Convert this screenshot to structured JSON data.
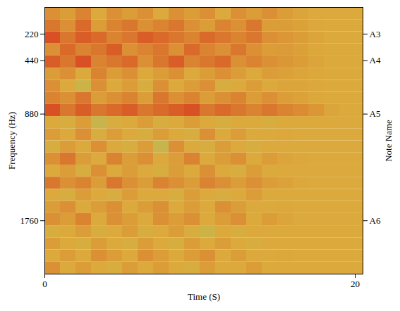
{
  "chart_data": {
    "type": "heatmap",
    "xlabel": "Time (S)",
    "ylabel": "Frequency (Hz)",
    "y2label": "Note Name",
    "xlim": [
      0,
      20.5
    ],
    "xticks": [
      0,
      20
    ],
    "ylim": [
      0,
      2200
    ],
    "yticks": [
      220,
      440,
      880,
      1760
    ],
    "y2lim": [
      0,
      2200
    ],
    "y2ticks": [
      {
        "value": 220,
        "label": "A3"
      },
      {
        "value": 440,
        "label": "A4"
      },
      {
        "value": 880,
        "label": "A5"
      },
      {
        "value": 1760,
        "label": "A6"
      }
    ],
    "cells": {
      "time_edges": [
        0,
        1,
        2,
        3,
        4,
        5,
        6,
        7,
        8,
        9,
        10,
        11,
        12,
        13,
        14,
        15,
        16,
        17,
        18,
        19,
        20,
        20.5
      ],
      "freq_edges": [
        0,
        100,
        200,
        300,
        400,
        500,
        600,
        700,
        800,
        900,
        1000,
        1100,
        1200,
        1300,
        1400,
        1500,
        1600,
        1700,
        1800,
        1900,
        2000,
        2100,
        2200
      ],
      "zlim": [
        0,
        1
      ],
      "z": [
        [
          0.6,
          0.55,
          0.65,
          0.5,
          0.6,
          0.55,
          0.6,
          0.5,
          0.6,
          0.55,
          0.6,
          0.5,
          0.6,
          0.55,
          0.6,
          0.55,
          0.52,
          0.5,
          0.5,
          0.5,
          0.5
        ],
        [
          0.7,
          0.6,
          0.75,
          0.55,
          0.65,
          0.7,
          0.6,
          0.65,
          0.7,
          0.6,
          0.55,
          0.65,
          0.6,
          0.7,
          0.55,
          0.55,
          0.53,
          0.51,
          0.5,
          0.5,
          0.5
        ],
        [
          0.85,
          0.7,
          0.8,
          0.75,
          0.65,
          0.7,
          0.8,
          0.75,
          0.7,
          0.65,
          0.75,
          0.7,
          0.65,
          0.7,
          0.6,
          0.58,
          0.55,
          0.52,
          0.5,
          0.5,
          0.5
        ],
        [
          0.6,
          0.75,
          0.65,
          0.7,
          0.8,
          0.6,
          0.65,
          0.7,
          0.6,
          0.75,
          0.65,
          0.6,
          0.7,
          0.6,
          0.55,
          0.56,
          0.54,
          0.51,
          0.5,
          0.5,
          0.5
        ],
        [
          0.8,
          0.7,
          0.85,
          0.65,
          0.7,
          0.75,
          0.6,
          0.7,
          0.8,
          0.65,
          0.7,
          0.75,
          0.6,
          0.65,
          0.6,
          0.58,
          0.55,
          0.52,
          0.5,
          0.5,
          0.5
        ],
        [
          0.55,
          0.6,
          0.5,
          0.65,
          0.55,
          0.6,
          0.5,
          0.55,
          0.6,
          0.5,
          0.55,
          0.6,
          0.55,
          0.5,
          0.55,
          0.54,
          0.52,
          0.51,
          0.5,
          0.5,
          0.5
        ],
        [
          0.6,
          0.5,
          0.35,
          0.6,
          0.5,
          0.55,
          0.45,
          0.6,
          0.5,
          0.55,
          0.6,
          0.45,
          0.5,
          0.55,
          0.5,
          0.52,
          0.52,
          0.51,
          0.5,
          0.5,
          0.5
        ],
        [
          0.65,
          0.6,
          0.7,
          0.55,
          0.6,
          0.65,
          0.55,
          0.7,
          0.6,
          0.65,
          0.55,
          0.6,
          0.65,
          0.55,
          0.6,
          0.55,
          0.53,
          0.51,
          0.5,
          0.5,
          0.5
        ],
        [
          0.85,
          0.7,
          0.8,
          0.7,
          0.75,
          0.8,
          0.7,
          0.75,
          0.8,
          0.85,
          0.7,
          0.75,
          0.7,
          0.65,
          0.7,
          0.65,
          0.62,
          0.58,
          0.52,
          0.5,
          0.5
        ],
        [
          0.5,
          0.45,
          0.55,
          0.3,
          0.45,
          0.5,
          0.55,
          0.45,
          0.5,
          0.55,
          0.5,
          0.45,
          0.5,
          0.5,
          0.45,
          0.5,
          0.5,
          0.5,
          0.5,
          0.5,
          0.5
        ],
        [
          0.55,
          0.5,
          0.6,
          0.45,
          0.55,
          0.5,
          0.45,
          0.55,
          0.5,
          0.45,
          0.6,
          0.5,
          0.55,
          0.5,
          0.5,
          0.51,
          0.5,
          0.5,
          0.5,
          0.5,
          0.5
        ],
        [
          0.45,
          0.55,
          0.5,
          0.6,
          0.5,
          0.45,
          0.55,
          0.3,
          0.6,
          0.5,
          0.45,
          0.55,
          0.5,
          0.45,
          0.5,
          0.5,
          0.5,
          0.5,
          0.5,
          0.5,
          0.5
        ],
        [
          0.6,
          0.7,
          0.55,
          0.5,
          0.65,
          0.55,
          0.6,
          0.5,
          0.55,
          0.65,
          0.5,
          0.55,
          0.6,
          0.5,
          0.55,
          0.52,
          0.51,
          0.5,
          0.5,
          0.5,
          0.5
        ],
        [
          0.5,
          0.55,
          0.45,
          0.6,
          0.5,
          0.55,
          0.5,
          0.45,
          0.55,
          0.5,
          0.6,
          0.5,
          0.45,
          0.55,
          0.5,
          0.5,
          0.5,
          0.5,
          0.5,
          0.5,
          0.5
        ],
        [
          0.7,
          0.6,
          0.65,
          0.55,
          0.7,
          0.6,
          0.55,
          0.65,
          0.6,
          0.55,
          0.65,
          0.6,
          0.55,
          0.6,
          0.55,
          0.53,
          0.51,
          0.5,
          0.5,
          0.5,
          0.5
        ],
        [
          0.5,
          0.45,
          0.55,
          0.5,
          0.45,
          0.55,
          0.5,
          0.5,
          0.45,
          0.55,
          0.5,
          0.45,
          0.5,
          0.55,
          0.5,
          0.5,
          0.5,
          0.5,
          0.5,
          0.5,
          0.5
        ],
        [
          0.55,
          0.6,
          0.5,
          0.55,
          0.6,
          0.5,
          0.55,
          0.6,
          0.5,
          0.55,
          0.5,
          0.6,
          0.55,
          0.5,
          0.5,
          0.51,
          0.5,
          0.5,
          0.5,
          0.5,
          0.5
        ],
        [
          0.6,
          0.55,
          0.65,
          0.5,
          0.6,
          0.55,
          0.5,
          0.6,
          0.55,
          0.6,
          0.5,
          0.55,
          0.6,
          0.5,
          0.55,
          0.52,
          0.5,
          0.5,
          0.5,
          0.5,
          0.5
        ],
        [
          0.45,
          0.5,
          0.55,
          0.45,
          0.5,
          0.55,
          0.45,
          0.5,
          0.55,
          0.45,
          0.35,
          0.5,
          0.45,
          0.5,
          0.5,
          0.5,
          0.5,
          0.5,
          0.5,
          0.5,
          0.5
        ],
        [
          0.55,
          0.5,
          0.45,
          0.55,
          0.5,
          0.45,
          0.55,
          0.5,
          0.45,
          0.55,
          0.5,
          0.55,
          0.5,
          0.45,
          0.5,
          0.5,
          0.5,
          0.5,
          0.5,
          0.5,
          0.5
        ],
        [
          0.5,
          0.55,
          0.5,
          0.6,
          0.55,
          0.5,
          0.6,
          0.55,
          0.5,
          0.55,
          0.6,
          0.5,
          0.55,
          0.5,
          0.5,
          0.51,
          0.5,
          0.5,
          0.5,
          0.5,
          0.5
        ],
        [
          0.6,
          0.5,
          0.55,
          0.5,
          0.45,
          0.55,
          0.5,
          0.55,
          0.5,
          0.45,
          0.55,
          0.5,
          0.5,
          0.55,
          0.5,
          0.5,
          0.5,
          0.5,
          0.5,
          0.5,
          0.5
        ]
      ]
    }
  }
}
